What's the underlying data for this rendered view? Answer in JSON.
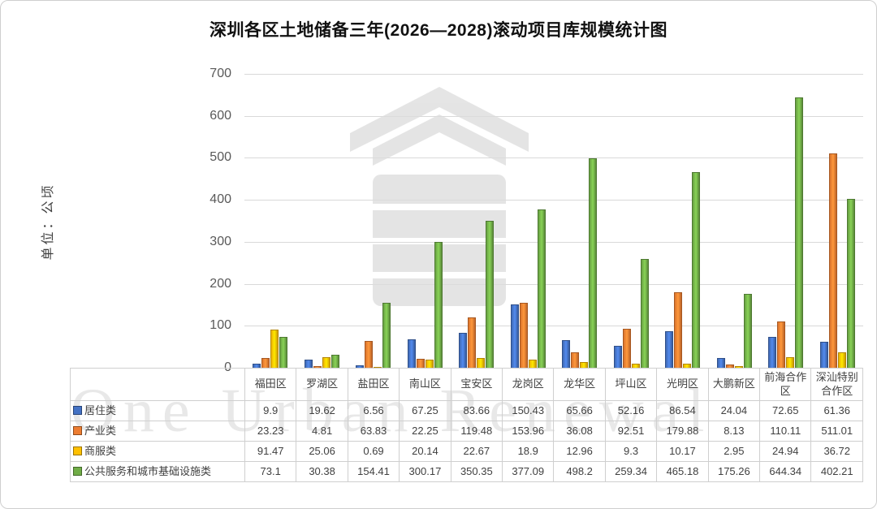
{
  "watermark": "One Urban Renewal",
  "chart_data": {
    "type": "bar",
    "title": "深圳各区土地储备三年(2026—2028)滚动项目库规模统计图",
    "xlabel": "",
    "ylabel": "单位：公顷",
    "ylim": [
      0,
      700
    ],
    "yticks": [
      0,
      100,
      200,
      300,
      400,
      500,
      600,
      700
    ],
    "grid": true,
    "legend_position": "table-left",
    "categories": [
      "福田区",
      "罗湖区",
      "盐田区",
      "南山区",
      "宝安区",
      "龙岗区",
      "龙华区",
      "坪山区",
      "光明区",
      "大鹏新区",
      "前海合作区",
      "深汕特别合作区"
    ],
    "series": [
      {
        "name": "居住类",
        "color": "#4472C4",
        "values": [
          9.9,
          19.62,
          6.56,
          67.25,
          83.66,
          150.43,
          65.66,
          52.16,
          86.54,
          24.04,
          72.65,
          61.36
        ]
      },
      {
        "name": "产业类",
        "color": "#ED7D31",
        "values": [
          23.23,
          4.81,
          63.83,
          22.25,
          119.48,
          153.96,
          36.08,
          92.51,
          179.88,
          8.13,
          110.11,
          511.01
        ]
      },
      {
        "name": "商服类",
        "color": "#FFC000",
        "values": [
          91.47,
          25.06,
          0.69,
          20.14,
          22.67,
          18.9,
          12.96,
          9.3,
          10.17,
          2.95,
          24.94,
          36.72
        ]
      },
      {
        "name": "公共服务和城市基础设施类",
        "color": "#70AD47",
        "values": [
          73.1,
          30.38,
          154.41,
          300.17,
          350.35,
          377.09,
          498.2,
          259.34,
          465.18,
          175.26,
          644.34,
          402.21
        ]
      }
    ]
  }
}
